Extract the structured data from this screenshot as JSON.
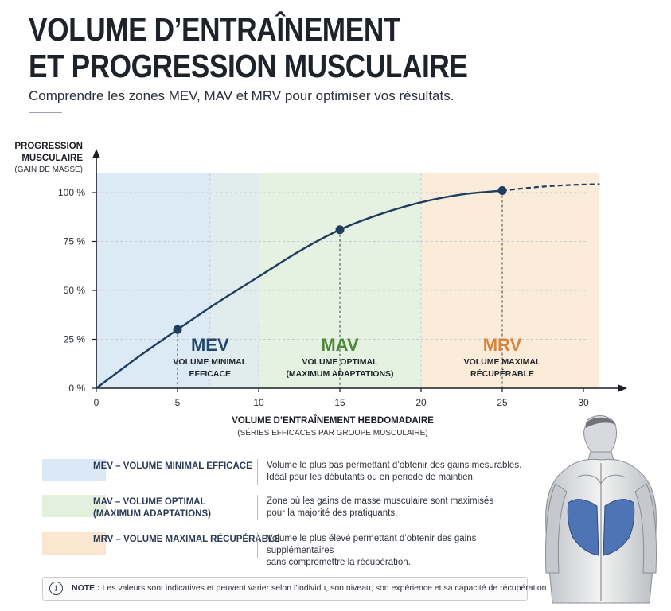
{
  "header": {
    "title_line1": "VOLUME D’ENTRAÎNEMENT",
    "title_line2": "ET PROGRESSION MUSCULAIRE",
    "subtitle": "Comprendre les zones MEV, MAV et MRV pour optimiser vos résultats."
  },
  "chart_data": {
    "type": "line",
    "ylabel_line1": "PROGRESSION",
    "ylabel_line2": "MUSCULAIRE",
    "ylabel_sub": "(GAIN DE MASSE)",
    "xlabel": "VOLUME D’ENTRAÎNEMENT HEBDOMADAIRE",
    "xlabel_sub": "(SÉRIES EFFICACES PAR GROUPE MUSCULAIRE)",
    "xlim": [
      0,
      31
    ],
    "ylim": [
      0,
      110
    ],
    "x_ticks": [
      0,
      5,
      10,
      15,
      20,
      25,
      30
    ],
    "y_ticks": [
      0,
      25,
      50,
      75,
      100
    ],
    "y_tick_labels": [
      "0 %",
      "25 %",
      "50 %",
      "75 %",
      "100 %"
    ],
    "grid": true,
    "series": [
      {
        "x": [
          0,
          2.5,
          5,
          7.5,
          10,
          12.5,
          15,
          17.5,
          20,
          22.5,
          25
        ],
        "y": [
          0,
          15.5,
          30,
          44,
          57,
          70,
          81,
          89,
          95,
          99,
          101
        ]
      }
    ],
    "extrapolation": {
      "x": [
        25,
        27,
        29,
        31
      ],
      "y": [
        101,
        102.7,
        103.8,
        104.3
      ],
      "style": "dashed"
    },
    "key_points": [
      {
        "x": 5,
        "y": 30,
        "zone": "MEV"
      },
      {
        "x": 15,
        "y": 81,
        "zone": "MAV"
      },
      {
        "x": 25,
        "y": 101,
        "zone": "MRV"
      }
    ],
    "zones": [
      {
        "name": "MEV",
        "line1": "VOLUME MINIMAL",
        "line2": "EFFICACE",
        "x_from": 0,
        "x_to": 7,
        "overlap_to": 10,
        "color": "#dceaf6",
        "label_color": "#24466b",
        "label_x": 7
      },
      {
        "name": "MAV",
        "line1": "VOLUME OPTIMAL",
        "line2": "(MAXIMUM ADAPTATIONS)",
        "x_from": 7,
        "x_to": 20,
        "color": "#e5f1e1",
        "label_color": "#4c8a3a",
        "label_x": 15
      },
      {
        "name": "MRV",
        "line1": "VOLUME MAXIMAL",
        "line2": "RÉCUPÉRABLE",
        "x_from": 20,
        "x_to": 31,
        "color": "#fbebd9",
        "label_color": "#d4843c",
        "label_x": 25
      }
    ],
    "colors": {
      "line": "#1f3d5f",
      "axis": "#1b1f24",
      "grid": "#c9cdd1"
    }
  },
  "legend": [
    {
      "name_line1": "MEV – VOLUME MINIMAL EFFICACE",
      "name_line2": "",
      "desc_line1": "Volume le plus bas permettant d’obtenir des gains mesurables.",
      "desc_line2": "Idéal pour les débutants ou en période de maintien.",
      "color": "#dbe8f5"
    },
    {
      "name_line1": "MAV – VOLUME OPTIMAL",
      "name_line2": "(MAXIMUM ADAPTATIONS)",
      "desc_line1": "Zone où les gains de masse musculaire sont maximisés",
      "desc_line2": "pour la majorité des pratiquants.",
      "color": "#e3f0de"
    },
    {
      "name_line1": "MRV – VOLUME MAXIMAL RÉCUPÉRABLE",
      "name_line2": "",
      "desc_line1": "Volume le plus élevé permettant d’obtenir des gains supplémentaires",
      "desc_line2": "sans compromettre la récupération.",
      "color": "#fbe6d2"
    }
  ],
  "note": {
    "icon": "info-icon",
    "label": "NOTE :",
    "text": " Les valeurs sont indicatives et peuvent varier selon l’individu, son niveau, son expérience et sa capacité de récupération."
  },
  "figure": {
    "icon": "muscular-back-illustration",
    "highlight_color": "#4f74b5"
  }
}
